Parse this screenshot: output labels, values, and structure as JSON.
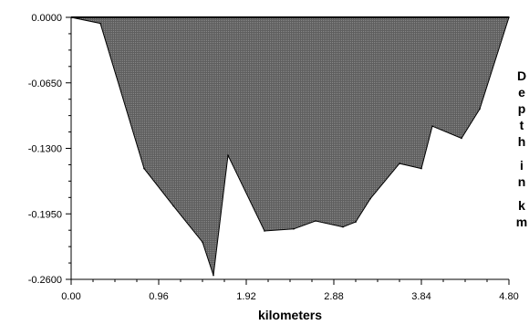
{
  "chart_data": {
    "type": "area",
    "title": "",
    "xlabel": "kilometers",
    "ylabel_letters": [
      "D",
      "e",
      "p",
      "t",
      "h",
      "i",
      "n",
      "k",
      "m"
    ],
    "xlim": [
      0,
      4.8
    ],
    "ylim": [
      -0.26,
      0
    ],
    "x_ticks": [
      0,
      0.96,
      1.92,
      2.88,
      3.84,
      4.8
    ],
    "x_tick_labels": [
      "0.00",
      "0.96",
      "1.92",
      "2.88",
      "3.84",
      "4.80"
    ],
    "y_ticks": [
      0,
      -0.065,
      -0.13,
      -0.195,
      -0.26
    ],
    "y_tick_labels": [
      "0.0000",
      "-0.0650",
      "-0.1300",
      "-0.1950",
      "-0.2600"
    ],
    "x_minor_step": 0.24,
    "y_minor_step": 0.01625,
    "grid": false,
    "legend": "none",
    "fill_color": "#6b6b6b",
    "line_color": "#000000",
    "series": [
      {
        "x": [
          0.0,
          0.32,
          0.8,
          1.12,
          1.44,
          1.56,
          1.72,
          2.12,
          2.44,
          2.68,
          2.98,
          3.12,
          3.28,
          3.6,
          3.84,
          3.96,
          4.28,
          4.48,
          4.8
        ],
        "y": [
          0.0,
          -0.006,
          -0.15,
          -0.187,
          -0.223,
          -0.256,
          -0.137,
          -0.212,
          -0.21,
          -0.202,
          -0.208,
          -0.203,
          -0.18,
          -0.145,
          -0.15,
          -0.108,
          -0.12,
          -0.091,
          0.0
        ]
      }
    ]
  }
}
